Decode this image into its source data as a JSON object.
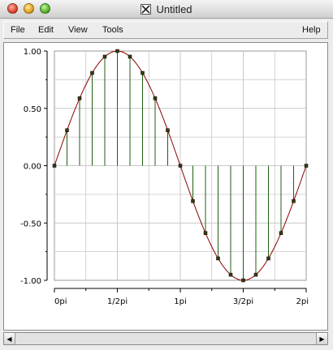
{
  "window": {
    "title": "Untitled",
    "title_icon": "x11-icon"
  },
  "menu": {
    "file": "File",
    "edit": "Edit",
    "view": "View",
    "tools": "Tools",
    "help": "Help"
  },
  "chart_data": {
    "type": "stem",
    "function": "sin(x)",
    "x_start": 0,
    "x_end": 6.283185307,
    "n_samples": 21,
    "xlim": [
      0,
      6.283185307
    ],
    "ylim": [
      -1,
      1
    ],
    "x_ticks": [
      {
        "value": 0,
        "label": "0pi"
      },
      {
        "value": 1.570796327,
        "label": "1/2pi"
      },
      {
        "value": 3.141592654,
        "label": "1pi"
      },
      {
        "value": 4.71238898,
        "label": "3/2pi"
      },
      {
        "value": 6.283185307,
        "label": "2pi"
      }
    ],
    "y_ticks": [
      {
        "value": 1.0,
        "label": "1.00"
      },
      {
        "value": 0.5,
        "label": "0.50"
      },
      {
        "value": 0.0,
        "label": "0.00"
      },
      {
        "value": -0.5,
        "label": "-0.50"
      },
      {
        "value": -1.0,
        "label": "-1.00"
      }
    ],
    "grid": true,
    "curve_color": "#8b0000",
    "stem_color": "#1f5f10",
    "marker_color": "#3a3a10"
  },
  "colors": {
    "grid": "#c8c8c8"
  }
}
